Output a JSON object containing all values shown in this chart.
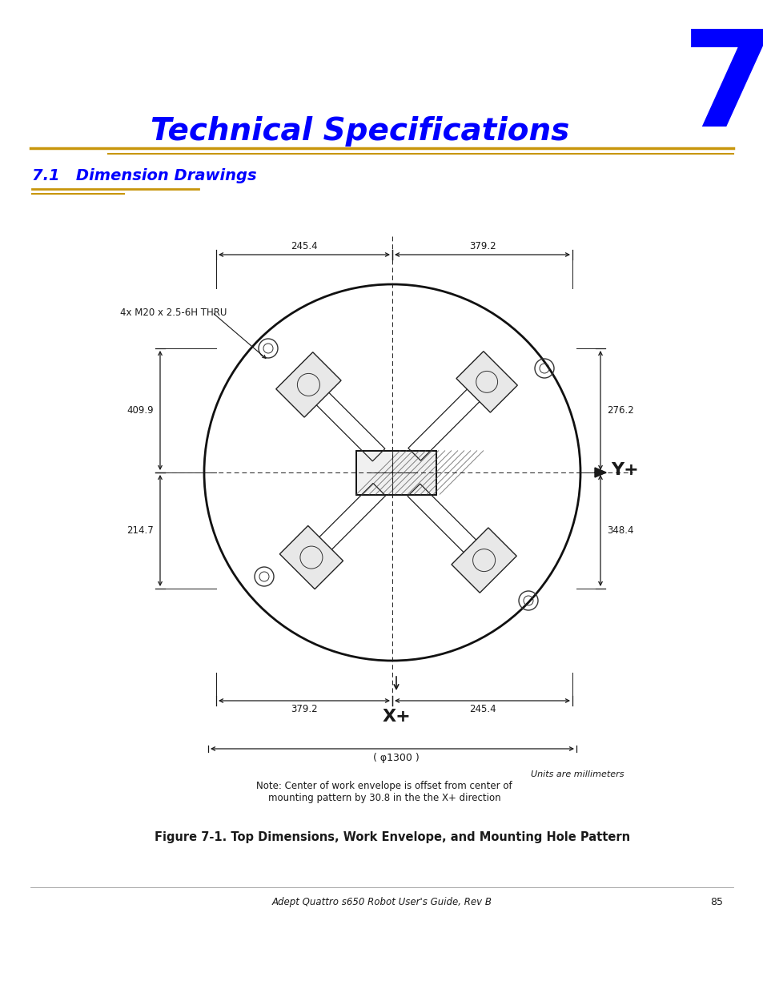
{
  "page_title": "Technical Specifications",
  "chapter_number": "7",
  "section_title": "7.1   Dimension Drawings",
  "figure_caption": "Figure 7-1. Top Dimensions, Work Envelope, and Mounting Hole Pattern",
  "note_text": "Note: Center of work envelope is offset from center of\nmounting pattern by 30.8 in the the X+ direction",
  "units_text": "Units are millimeters",
  "footer_text": "Adept Quattro s650 Robot User's Guide, Rev B",
  "page_number": "85",
  "title_color": "#0000FF",
  "gold_color": "#C8960C",
  "dim_color": "#1a1a1a",
  "bg_color": "#FFFFFF",
  "dim_245_4": "245.4",
  "dim_379_2": "379.2",
  "dim_276_2": "276.2",
  "dim_409_9": "409.9",
  "dim_214_7": "214.7",
  "dim_348_4": "348.4",
  "label_x_plus": "X+",
  "label_y_plus": "Y+",
  "label_4xM20": "4x M20 x 2.5-6H THRU",
  "diam_label": "( φ1300 )"
}
